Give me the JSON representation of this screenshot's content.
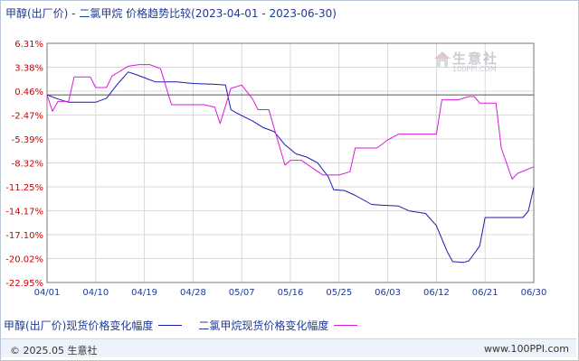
{
  "title": "甲醇(出厂价) - 二氯甲烷 价格趋势比较(2023-04-01 - 2023-06-30)",
  "colors": {
    "series1": "#1c1caa",
    "series2": "#d81ad8",
    "axis": "#7a7a7a",
    "grid": "#d9d9d9",
    "baseline": "#555555",
    "ytick_text": "#cc0000",
    "xtick_text": "#1f3a93"
  },
  "watermark": {
    "text": "生意社",
    "url": "100PPI.COM"
  },
  "footer": {
    "left": "© 2025.05 生意社",
    "right": "www.100PPI.com"
  },
  "chart_data": {
    "type": "line",
    "title": "甲醇(出厂价) - 二氯甲烷 价格趋势比较(2023-04-01 - 2023-06-30)",
    "xlabel": "",
    "ylabel": "",
    "x_ticks": [
      "04/01",
      "04/10",
      "04/19",
      "04/28",
      "05/07",
      "05/16",
      "05/25",
      "06/03",
      "06/12",
      "06/21",
      "06/30"
    ],
    "y_ticks": [
      "6.31%",
      "3.38%",
      "0.46%",
      "-2.47%",
      "-5.39%",
      "-8.32%",
      "-11.25%",
      "-14.17%",
      "-17.10%",
      "-20.02%",
      "-22.95%"
    ],
    "ylim": [
      -22.95,
      6.31
    ],
    "xlim": [
      "2023-04-01",
      "2023-06-30"
    ],
    "baseline": 0,
    "grid": true,
    "legend_position": "bottom",
    "series": [
      {
        "name": "甲醇(出厂价)现货价格变化幅度",
        "points": [
          [
            "2023-04-01",
            0.0
          ],
          [
            "2023-04-03",
            -0.5
          ],
          [
            "2023-04-05",
            -0.9
          ],
          [
            "2023-04-07",
            -0.9
          ],
          [
            "2023-04-10",
            -0.9
          ],
          [
            "2023-04-12",
            -0.4
          ],
          [
            "2023-04-14",
            1.3
          ],
          [
            "2023-04-16",
            2.8
          ],
          [
            "2023-04-17",
            2.6
          ],
          [
            "2023-04-19",
            2.1
          ],
          [
            "2023-04-21",
            1.6
          ],
          [
            "2023-04-25",
            1.6
          ],
          [
            "2023-04-28",
            1.4
          ],
          [
            "2023-05-02",
            1.3
          ],
          [
            "2023-05-04",
            1.2
          ],
          [
            "2023-05-05",
            -1.8
          ],
          [
            "2023-05-06",
            -2.2
          ],
          [
            "2023-05-09",
            -3.2
          ],
          [
            "2023-05-11",
            -4.0
          ],
          [
            "2023-05-13",
            -4.5
          ],
          [
            "2023-05-15",
            -6.1
          ],
          [
            "2023-05-17",
            -7.2
          ],
          [
            "2023-05-19",
            -7.6
          ],
          [
            "2023-05-21",
            -8.3
          ],
          [
            "2023-05-23",
            -10.0
          ],
          [
            "2023-05-24",
            -11.6
          ],
          [
            "2023-05-26",
            -11.7
          ],
          [
            "2023-05-28",
            -12.3
          ],
          [
            "2023-05-31",
            -13.4
          ],
          [
            "2023-06-02",
            -13.5
          ],
          [
            "2023-06-05",
            -13.6
          ],
          [
            "2023-06-07",
            -14.2
          ],
          [
            "2023-06-10",
            -14.5
          ],
          [
            "2023-06-12",
            -16.0
          ],
          [
            "2023-06-14",
            -19.2
          ],
          [
            "2023-06-15",
            -20.4
          ],
          [
            "2023-06-17",
            -20.5
          ],
          [
            "2023-06-18",
            -20.3
          ],
          [
            "2023-06-20",
            -18.5
          ],
          [
            "2023-06-21",
            -15.0
          ],
          [
            "2023-06-28",
            -15.0
          ],
          [
            "2023-06-29",
            -14.2
          ],
          [
            "2023-06-30",
            -11.3
          ]
        ]
      },
      {
        "name": "二氯甲烷现货价格变化幅度",
        "points": [
          [
            "2023-04-01",
            0.0
          ],
          [
            "2023-04-02",
            -2.0
          ],
          [
            "2023-04-03",
            -0.8
          ],
          [
            "2023-04-05",
            -0.8
          ],
          [
            "2023-04-06",
            2.2
          ],
          [
            "2023-04-09",
            2.2
          ],
          [
            "2023-04-10",
            0.9
          ],
          [
            "2023-04-12",
            0.9
          ],
          [
            "2023-04-13",
            2.3
          ],
          [
            "2023-04-16",
            3.5
          ],
          [
            "2023-04-18",
            3.7
          ],
          [
            "2023-04-20",
            3.7
          ],
          [
            "2023-04-22",
            3.2
          ],
          [
            "2023-04-24",
            -1.2
          ],
          [
            "2023-04-28",
            -1.2
          ],
          [
            "2023-04-30",
            -1.2
          ],
          [
            "2023-05-02",
            -1.5
          ],
          [
            "2023-05-03",
            -3.5
          ],
          [
            "2023-05-05",
            0.8
          ],
          [
            "2023-05-07",
            1.2
          ],
          [
            "2023-05-09",
            -0.5
          ],
          [
            "2023-05-10",
            -1.8
          ],
          [
            "2023-05-12",
            -1.8
          ],
          [
            "2023-05-15",
            -8.6
          ],
          [
            "2023-05-16",
            -8.0
          ],
          [
            "2023-05-18",
            -8.0
          ],
          [
            "2023-05-22",
            -9.8
          ],
          [
            "2023-05-25",
            -9.8
          ],
          [
            "2023-05-27",
            -9.4
          ],
          [
            "2023-05-28",
            -6.5
          ],
          [
            "2023-06-01",
            -6.5
          ],
          [
            "2023-06-03",
            -5.5
          ],
          [
            "2023-06-05",
            -4.8
          ],
          [
            "2023-06-09",
            -4.8
          ],
          [
            "2023-06-12",
            -4.8
          ],
          [
            "2023-06-13",
            -0.6
          ],
          [
            "2023-06-16",
            -0.6
          ],
          [
            "2023-06-18",
            -0.2
          ],
          [
            "2023-06-19",
            -0.2
          ],
          [
            "2023-06-20",
            -1.0
          ],
          [
            "2023-06-23",
            -1.0
          ],
          [
            "2023-06-24",
            -6.5
          ],
          [
            "2023-06-26",
            -10.3
          ],
          [
            "2023-06-27",
            -9.6
          ],
          [
            "2023-06-30",
            -8.8
          ]
        ]
      }
    ]
  }
}
